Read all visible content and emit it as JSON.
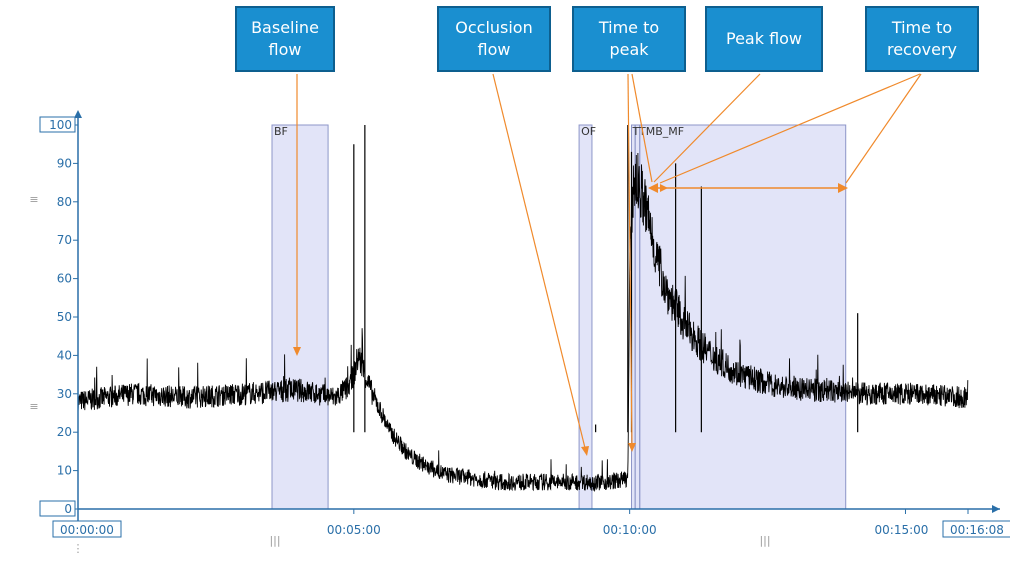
{
  "callouts": [
    {
      "id": "baseline",
      "text": "Baseline\nflow"
    },
    {
      "id": "occlusion",
      "text": "Occlusion\nflow"
    },
    {
      "id": "ttp",
      "text": "Time to\npeak"
    },
    {
      "id": "peak",
      "text": "Peak flow"
    },
    {
      "id": "ttr",
      "text": "Time to\nrecovery"
    }
  ],
  "chart_data": {
    "type": "line",
    "x_unit": "seconds",
    "xlim": [
      0,
      968
    ],
    "ylim": [
      0,
      100
    ],
    "y_ticks": [
      0,
      10,
      20,
      30,
      40,
      50,
      60,
      70,
      80,
      90,
      100
    ],
    "x_tick_labels": [
      "00:00:00",
      "00:05:00",
      "00:10:00",
      "00:15:00",
      "00:16:08"
    ],
    "x_tick_values": [
      0,
      300,
      600,
      900,
      968
    ],
    "series": [
      {
        "x": [
          0,
          60,
          120,
          180,
          240,
          280,
          295,
          300,
          305,
          320,
          340,
          360,
          380,
          400,
          430,
          460,
          500,
          540,
          580,
          598,
          600,
          603,
          606,
          612,
          620,
          630,
          640,
          660,
          680,
          700,
          720,
          760,
          800,
          850,
          900,
          968
        ],
        "y": [
          28,
          30,
          29,
          30,
          31,
          29,
          32,
          35,
          40,
          30,
          20,
          14,
          11,
          9,
          8,
          7,
          7,
          7,
          7,
          8,
          60,
          82,
          86,
          83,
          76,
          65,
          57,
          48,
          42,
          38,
          35,
          32,
          31,
          30,
          30,
          29
        ]
      }
    ],
    "regions": [
      {
        "label": "BF",
        "start": 211,
        "end": 272
      },
      {
        "label": "OF",
        "start": 545,
        "end": 559
      },
      {
        "label": "TTP",
        "start": 602,
        "end": 606
      },
      {
        "label": "MF",
        "start": 606,
        "end": 611
      },
      {
        "label": "TTR",
        "start": 611,
        "end": 835
      }
    ],
    "region_text": "TTMB_MF"
  }
}
